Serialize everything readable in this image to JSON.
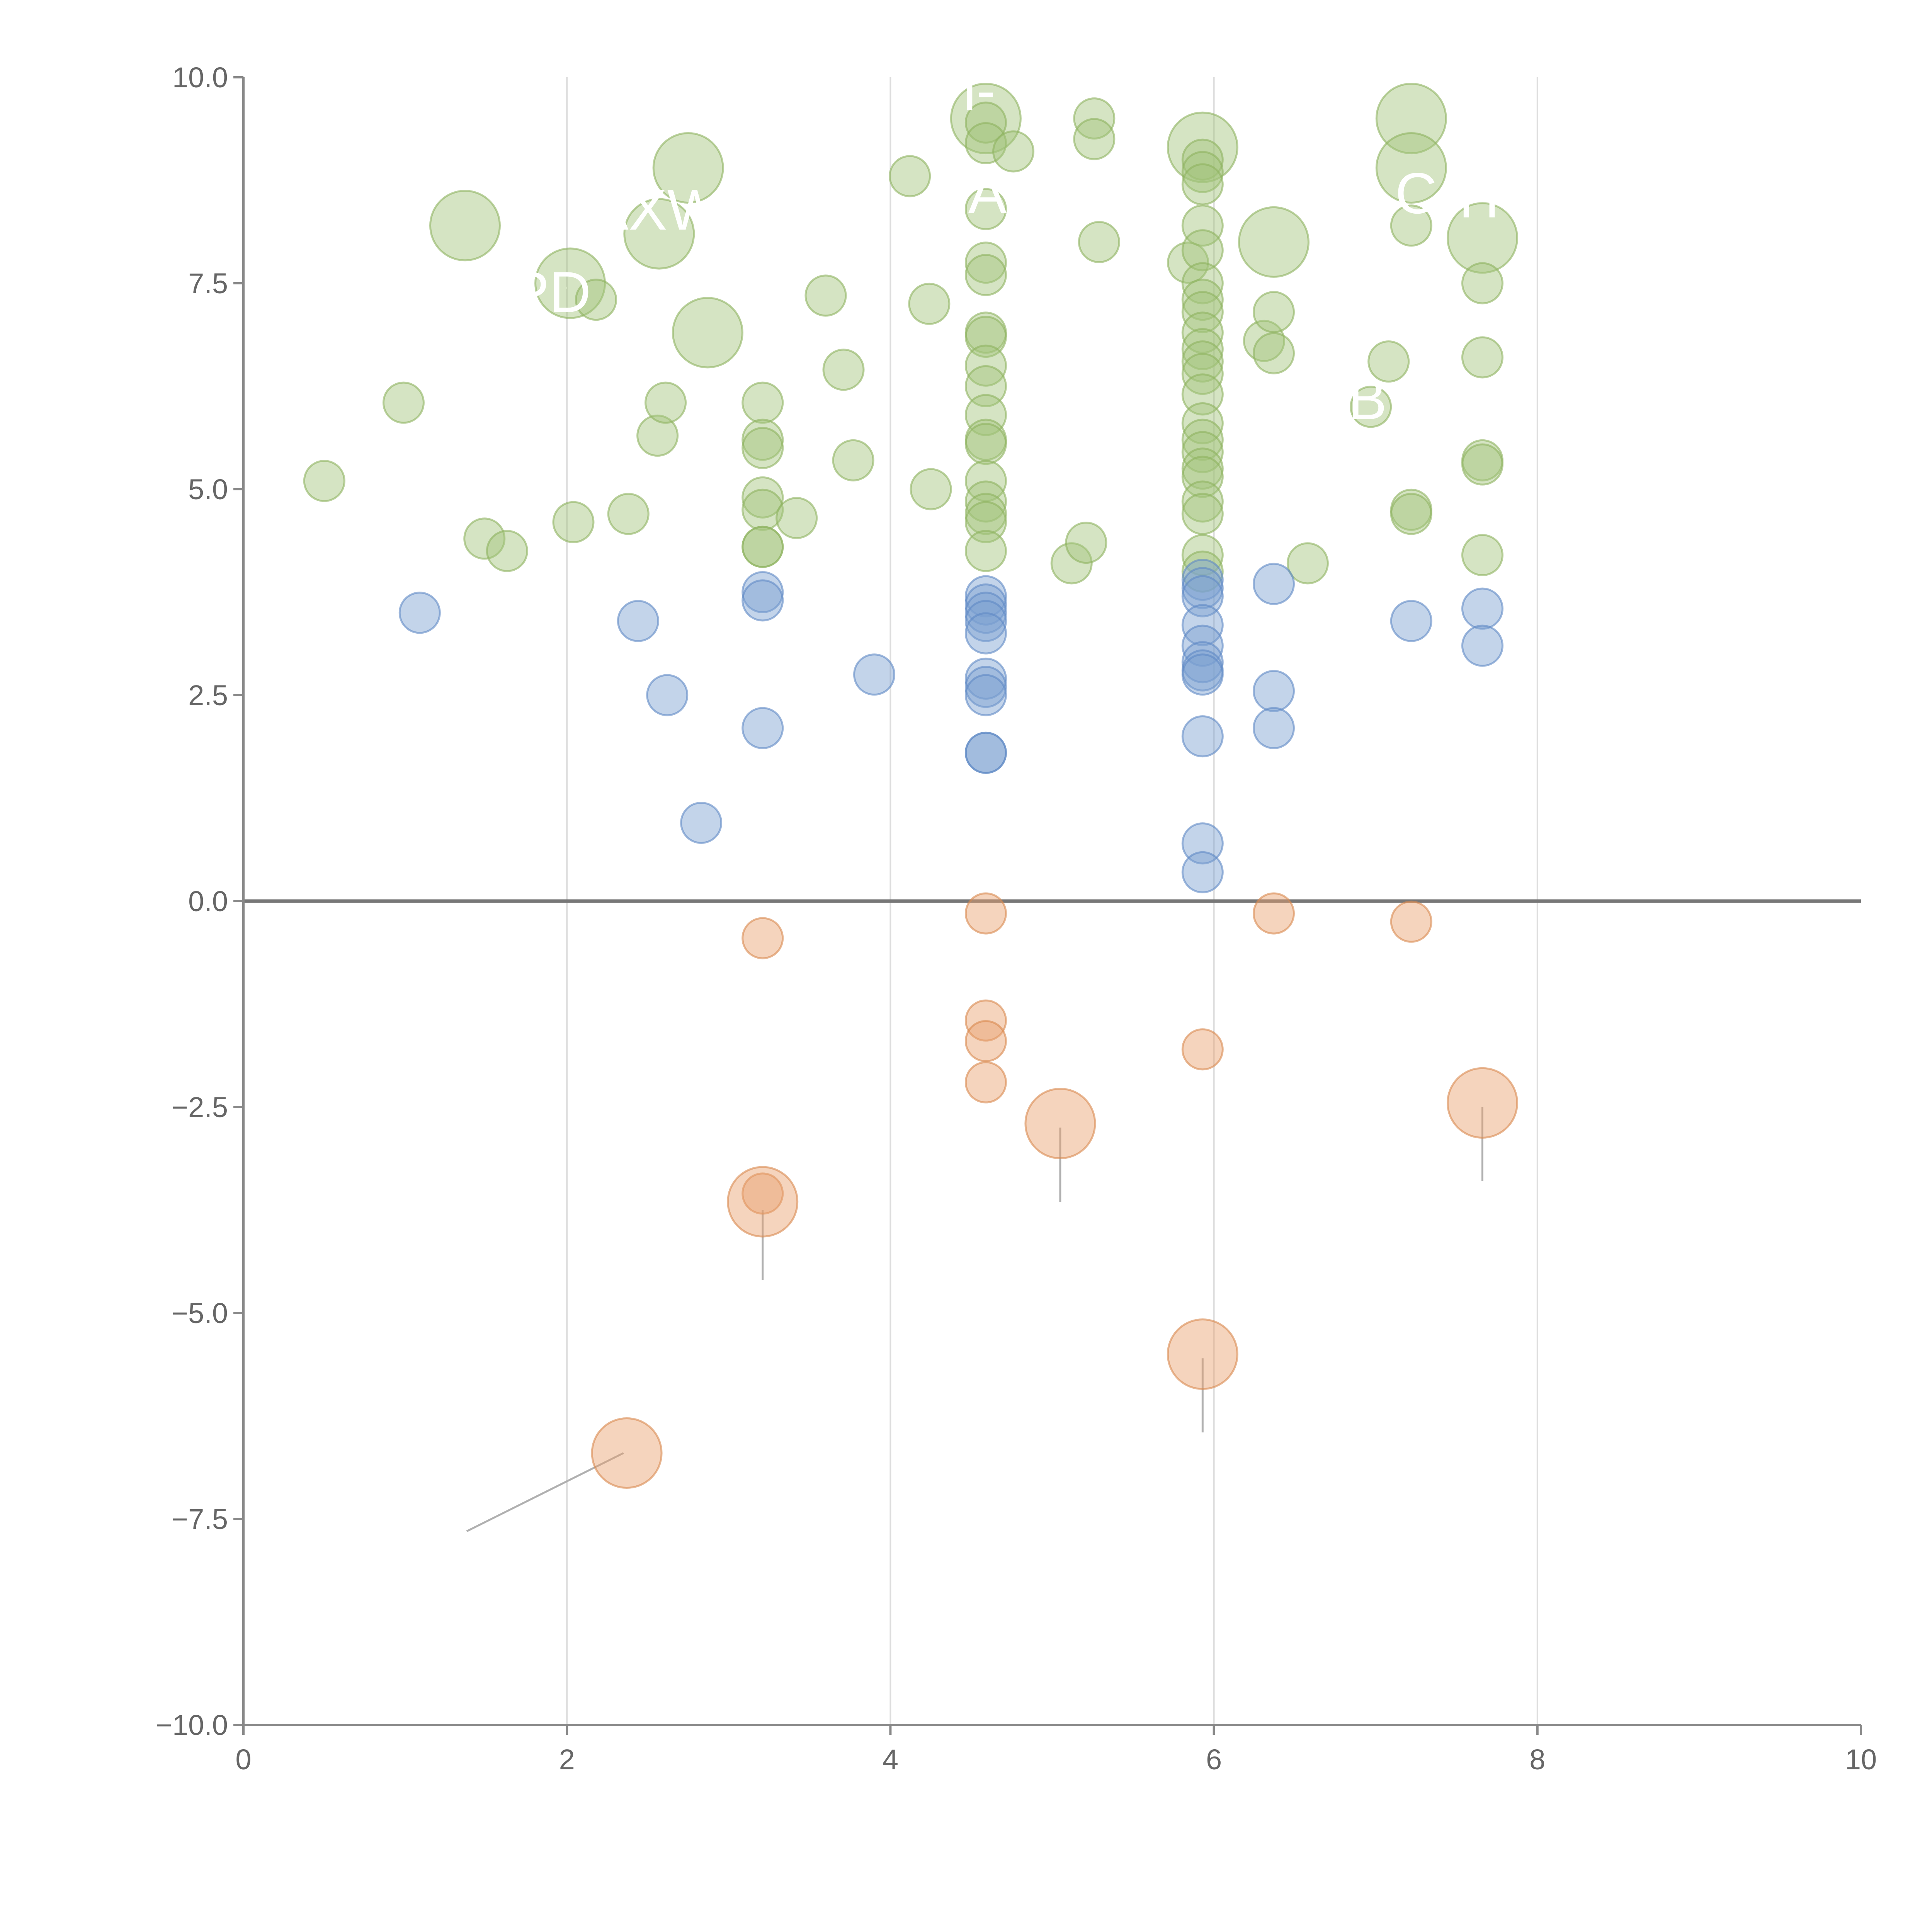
{
  "colors": {
    "background": "#ffffff",
    "axis": "#888888",
    "grid": "#dddddd",
    "zero_line": "#777777",
    "tick_label": "#666666",
    "green": "#a2c47a",
    "green_stroke": "#8db35f",
    "blue": "#7b9fd1",
    "blue_stroke": "#5f88c4",
    "orange": "#e8a06d",
    "orange_stroke": "#d9894f",
    "label": "#ffffff",
    "leader_light": "#ffffff",
    "leader_dark": "#b0b0b0"
  },
  "chart_data": {
    "type": "scatter",
    "title": "",
    "xlabel": "",
    "ylabel": "",
    "xlim": [
      0,
      10
    ],
    "ylim": [
      -10,
      10
    ],
    "x_ticks": [
      "0",
      "2",
      "4",
      "6",
      "8",
      "10"
    ],
    "y_ticks": [
      "10.0",
      "7.5",
      "5.0",
      "2.5",
      "0.0",
      "−2.5",
      "−5.0",
      "−7.5",
      "−10.0"
    ],
    "x_tick_values": [
      0,
      2,
      4,
      6,
      8,
      10
    ],
    "y_tick_values": [
      10,
      7.5,
      5,
      2.5,
      0,
      -2.5,
      -5,
      -7.5,
      -10
    ],
    "x_grid_values": [
      2,
      4,
      6,
      8
    ],
    "zero_line": 0,
    "series": [
      {
        "name": "green",
        "color_key": "green",
        "points": [
          [
            1.37,
            8.2,
            2
          ],
          [
            2.02,
            7.5,
            2
          ],
          [
            2.75,
            8.9,
            2
          ],
          [
            2.57,
            8.1,
            2
          ],
          [
            2.87,
            6.9,
            2
          ],
          [
            4.59,
            9.5,
            2
          ],
          [
            5.93,
            9.15,
            2
          ],
          [
            7.22,
            9.5,
            2
          ],
          [
            7.22,
            8.9,
            2
          ],
          [
            7.66,
            8.05,
            2
          ],
          [
            6.37,
            8.0,
            2
          ],
          [
            0.5,
            5.1,
            1
          ],
          [
            0.99,
            6.05,
            1
          ],
          [
            1.49,
            4.4,
            1
          ],
          [
            1.63,
            4.25,
            1
          ],
          [
            2.04,
            4.6,
            1
          ],
          [
            2.38,
            4.7,
            1
          ],
          [
            2.56,
            5.65,
            1
          ],
          [
            2.61,
            6.05,
            1
          ],
          [
            2.18,
            7.3,
            1
          ],
          [
            3.21,
            6.05,
            1
          ],
          [
            3.21,
            5.6,
            1
          ],
          [
            3.21,
            5.5,
            1
          ],
          [
            3.21,
            4.9,
            1
          ],
          [
            3.21,
            4.75,
            1
          ],
          [
            3.21,
            4.3,
            1
          ],
          [
            3.21,
            4.3,
            1
          ],
          [
            3.42,
            4.65,
            1
          ],
          [
            3.6,
            7.35,
            1
          ],
          [
            3.71,
            6.45,
            1
          ],
          [
            3.77,
            5.35,
            1
          ],
          [
            4.12,
            8.8,
            1
          ],
          [
            4.24,
            7.25,
            1
          ],
          [
            4.25,
            5.0,
            1
          ],
          [
            4.59,
            9.45,
            1
          ],
          [
            4.59,
            9.2,
            1
          ],
          [
            4.59,
            8.4,
            1
          ],
          [
            4.59,
            7.75,
            1
          ],
          [
            4.59,
            7.6,
            1
          ],
          [
            4.59,
            6.9,
            1
          ],
          [
            4.59,
            6.85,
            1
          ],
          [
            4.59,
            6.5,
            1
          ],
          [
            4.59,
            6.25,
            1
          ],
          [
            4.59,
            5.9,
            1
          ],
          [
            4.59,
            5.6,
            1
          ],
          [
            4.59,
            5.55,
            1
          ],
          [
            4.59,
            5.1,
            1
          ],
          [
            4.59,
            4.85,
            1
          ],
          [
            4.59,
            4.7,
            1
          ],
          [
            4.59,
            4.6,
            1
          ],
          [
            4.59,
            4.25,
            1
          ],
          [
            4.76,
            9.1,
            1
          ],
          [
            5.12,
            4.1,
            1
          ],
          [
            5.21,
            4.35,
            1
          ],
          [
            5.26,
            9.5,
            1
          ],
          [
            5.26,
            9.25,
            1
          ],
          [
            5.29,
            8.0,
            1
          ],
          [
            5.84,
            7.75,
            1
          ],
          [
            5.93,
            9.0,
            1
          ],
          [
            5.93,
            8.85,
            1
          ],
          [
            5.93,
            8.7,
            1
          ],
          [
            5.93,
            8.2,
            1
          ],
          [
            5.93,
            7.9,
            1
          ],
          [
            5.93,
            7.5,
            1
          ],
          [
            5.93,
            7.3,
            1
          ],
          [
            5.93,
            7.15,
            1
          ],
          [
            5.93,
            6.9,
            1
          ],
          [
            5.93,
            6.7,
            1
          ],
          [
            5.93,
            6.55,
            1
          ],
          [
            5.93,
            6.4,
            1
          ],
          [
            5.93,
            6.15,
            1
          ],
          [
            5.93,
            5.8,
            1
          ],
          [
            5.93,
            5.6,
            1
          ],
          [
            5.93,
            5.45,
            1
          ],
          [
            5.93,
            5.25,
            1
          ],
          [
            5.93,
            5.15,
            1
          ],
          [
            5.93,
            4.85,
            1
          ],
          [
            5.93,
            4.7,
            1
          ],
          [
            5.93,
            4.2,
            1
          ],
          [
            5.93,
            4.0,
            1
          ],
          [
            6.31,
            6.8,
            1
          ],
          [
            6.37,
            7.15,
            1
          ],
          [
            6.37,
            6.65,
            1
          ],
          [
            6.58,
            4.1,
            1
          ],
          [
            6.97,
            6.0,
            1
          ],
          [
            7.08,
            6.55,
            1
          ],
          [
            7.22,
            8.2,
            1
          ],
          [
            7.22,
            4.75,
            1
          ],
          [
            7.22,
            4.7,
            1
          ],
          [
            7.66,
            7.5,
            1
          ],
          [
            7.66,
            6.6,
            1
          ],
          [
            7.66,
            5.35,
            1
          ],
          [
            7.66,
            5.3,
            1
          ],
          [
            7.66,
            4.2,
            1
          ]
        ]
      },
      {
        "name": "blue",
        "color_key": "blue",
        "points": [
          [
            1.09,
            3.5,
            1
          ],
          [
            2.44,
            3.4,
            1
          ],
          [
            2.62,
            2.5,
            1
          ],
          [
            2.83,
            0.95,
            1
          ],
          [
            3.21,
            3.75,
            1
          ],
          [
            3.21,
            3.65,
            1
          ],
          [
            3.21,
            2.1,
            1
          ],
          [
            3.9,
            2.75,
            1
          ],
          [
            4.59,
            3.7,
            1
          ],
          [
            4.59,
            3.6,
            1
          ],
          [
            4.59,
            3.5,
            1
          ],
          [
            4.59,
            3.4,
            1
          ],
          [
            4.59,
            3.25,
            1
          ],
          [
            4.59,
            2.7,
            1
          ],
          [
            4.59,
            2.6,
            1
          ],
          [
            4.59,
            2.5,
            1
          ],
          [
            4.59,
            1.8,
            1
          ],
          [
            4.59,
            1.8,
            1
          ],
          [
            5.93,
            3.9,
            1
          ],
          [
            5.93,
            3.8,
            1
          ],
          [
            5.93,
            3.7,
            1
          ],
          [
            5.93,
            3.35,
            1
          ],
          [
            5.93,
            3.1,
            1
          ],
          [
            5.93,
            2.9,
            1
          ],
          [
            5.93,
            2.8,
            1
          ],
          [
            5.93,
            2.75,
            1
          ],
          [
            5.93,
            2.0,
            1
          ],
          [
            5.93,
            0.7,
            1
          ],
          [
            5.93,
            0.35,
            1
          ],
          [
            6.37,
            3.85,
            1
          ],
          [
            6.37,
            2.55,
            1
          ],
          [
            6.37,
            2.1,
            1
          ],
          [
            7.22,
            3.4,
            1
          ],
          [
            7.66,
            3.55,
            1
          ],
          [
            7.66,
            3.1,
            1
          ]
        ]
      },
      {
        "name": "orange",
        "color_key": "orange",
        "points": [
          [
            3.21,
            -0.45,
            1
          ],
          [
            4.59,
            -0.15,
            1
          ],
          [
            4.59,
            -1.45,
            1
          ],
          [
            4.59,
            -1.7,
            1
          ],
          [
            4.59,
            -2.2,
            1
          ],
          [
            5.93,
            -1.8,
            1
          ],
          [
            6.37,
            -0.15,
            1
          ],
          [
            7.22,
            -0.25,
            1
          ],
          [
            3.21,
            -3.55,
            1
          ],
          [
            3.21,
            -3.65,
            2
          ],
          [
            5.05,
            -2.7,
            2
          ],
          [
            7.66,
            -2.45,
            2
          ],
          [
            5.93,
            -5.5,
            2
          ],
          [
            2.37,
            -6.7,
            2
          ]
        ]
      }
    ],
    "labels": [
      "l-",
      "AXW",
      "PD",
      "A",
      "C",
      "IT",
      "B"
    ],
    "label_positions": [
      [
        4.55,
        9.6
      ],
      [
        2.55,
        8.15
      ],
      [
        1.9,
        7.15
      ],
      [
        4.6,
        8.35
      ],
      [
        7.25,
        8.35
      ],
      [
        7.67,
        8.3
      ],
      [
        6.95,
        5.85
      ]
    ],
    "leaders": [
      [
        [
          1.2,
          8.35
        ],
        [
          1.35,
          8.2
        ],
        "light"
      ],
      [
        [
          2.78,
          8.85
        ],
        [
          2.95,
          8.65
        ],
        "light"
      ],
      [
        [
          1.9,
          7.3
        ],
        [
          2.0,
          7.45
        ],
        "light"
      ],
      [
        [
          2.87,
          6.85
        ],
        [
          3.0,
          6.65
        ],
        "light"
      ],
      [
        [
          3.21,
          6.0
        ],
        [
          3.1,
          6.2
        ],
        "light"
      ],
      [
        [
          5.93,
          9.2
        ],
        [
          5.5,
          8.9
        ],
        "light"
      ],
      [
        [
          6.37,
          7.95
        ],
        [
          6.5,
          7.75
        ],
        "light"
      ],
      [
        [
          7.22,
          9.45
        ],
        [
          7.4,
          9.1
        ],
        "light"
      ],
      [
        [
          7.22,
          8.85
        ],
        [
          7.1,
          9.0
        ],
        "light"
      ],
      [
        [
          7.66,
          8.0
        ],
        [
          7.55,
          7.8
        ],
        "light"
      ],
      [
        [
          7.0,
          6.05
        ],
        [
          7.2,
          6.3
        ],
        "light"
      ],
      [
        [
          5.93,
          3.05
        ],
        [
          5.8,
          2.8
        ],
        "light"
      ],
      [
        [
          3.21,
          -3.75
        ],
        [
          3.21,
          -4.6
        ],
        "dark"
      ],
      [
        [
          5.05,
          -2.75
        ],
        [
          5.05,
          -3.65
        ],
        "dark"
      ],
      [
        [
          7.66,
          -2.5
        ],
        [
          7.66,
          -3.4
        ],
        "dark"
      ],
      [
        [
          5.93,
          -5.55
        ],
        [
          5.93,
          -6.45
        ],
        "dark"
      ],
      [
        [
          2.35,
          -6.7
        ],
        [
          1.38,
          -7.65
        ],
        "dark"
      ]
    ]
  }
}
